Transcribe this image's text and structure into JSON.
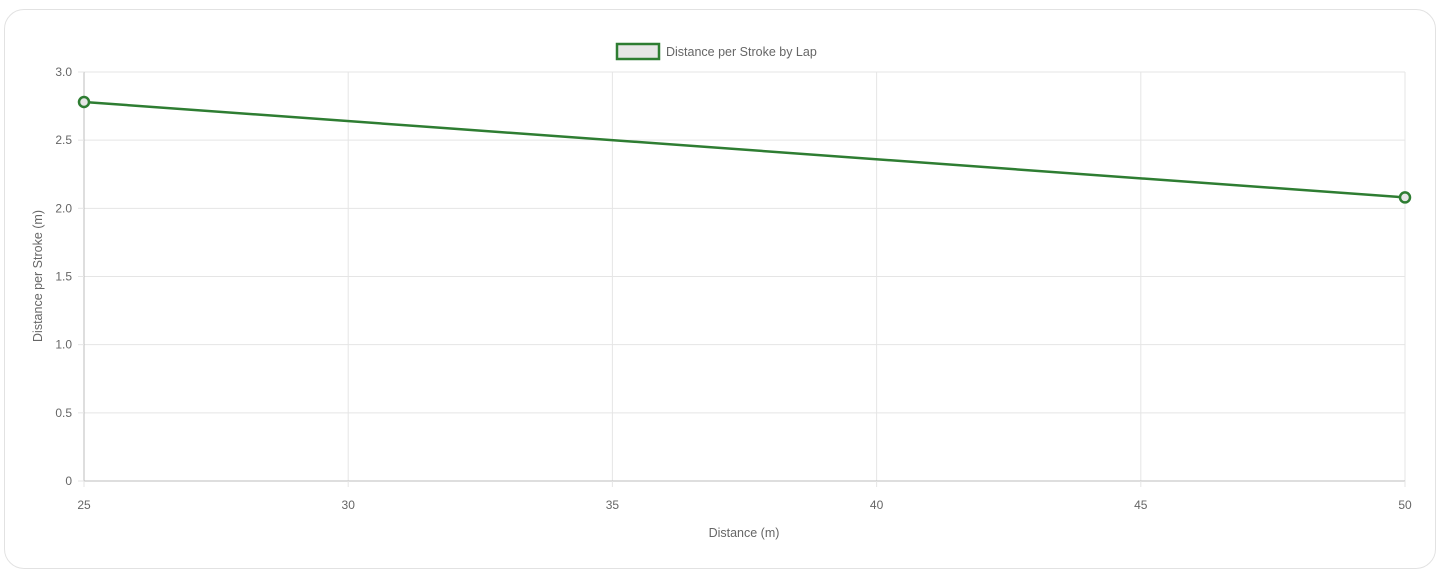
{
  "chart_data": {
    "type": "line",
    "x": [
      25,
      50
    ],
    "series": [
      {
        "name": "Distance per Stroke by Lap",
        "values": [
          2.78,
          2.08
        ]
      }
    ],
    "xlabel": "Distance (m)",
    "ylabel": "Distance per Stroke (m)",
    "xlim": [
      25,
      50
    ],
    "ylim": [
      0,
      3.0
    ],
    "xticks": [
      "25",
      "30",
      "35",
      "40",
      "45",
      "50"
    ],
    "yticks": [
      "0",
      "0.5",
      "1.0",
      "1.5",
      "2.0",
      "2.5",
      "3.0"
    ],
    "grid": true,
    "legend_position": "top",
    "colors": {
      "line": "#2e7d32",
      "legend_fill": "#e6e6e6"
    }
  }
}
